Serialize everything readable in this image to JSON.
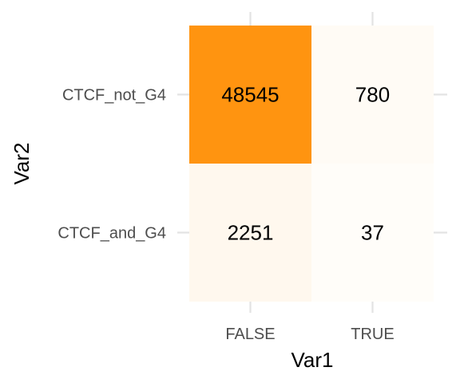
{
  "chart_data": {
    "type": "heatmap",
    "title": "",
    "xlabel": "Var1",
    "ylabel": "Var2",
    "x_categories": [
      "FALSE",
      "TRUE"
    ],
    "y_categories": [
      "CTCF_and_G4",
      "CTCF_not_G4"
    ],
    "cells": [
      {
        "x": "FALSE",
        "y": "CTCF_not_G4",
        "value": 48545
      },
      {
        "x": "TRUE",
        "y": "CTCF_not_G4",
        "value": 780
      },
      {
        "x": "FALSE",
        "y": "CTCF_and_G4",
        "value": 2251
      },
      {
        "x": "TRUE",
        "y": "CTCF_and_G4",
        "value": 37
      }
    ],
    "color_low": "#FFFDF9",
    "color_high": "#FF9410",
    "grid": true,
    "legend": "none"
  }
}
